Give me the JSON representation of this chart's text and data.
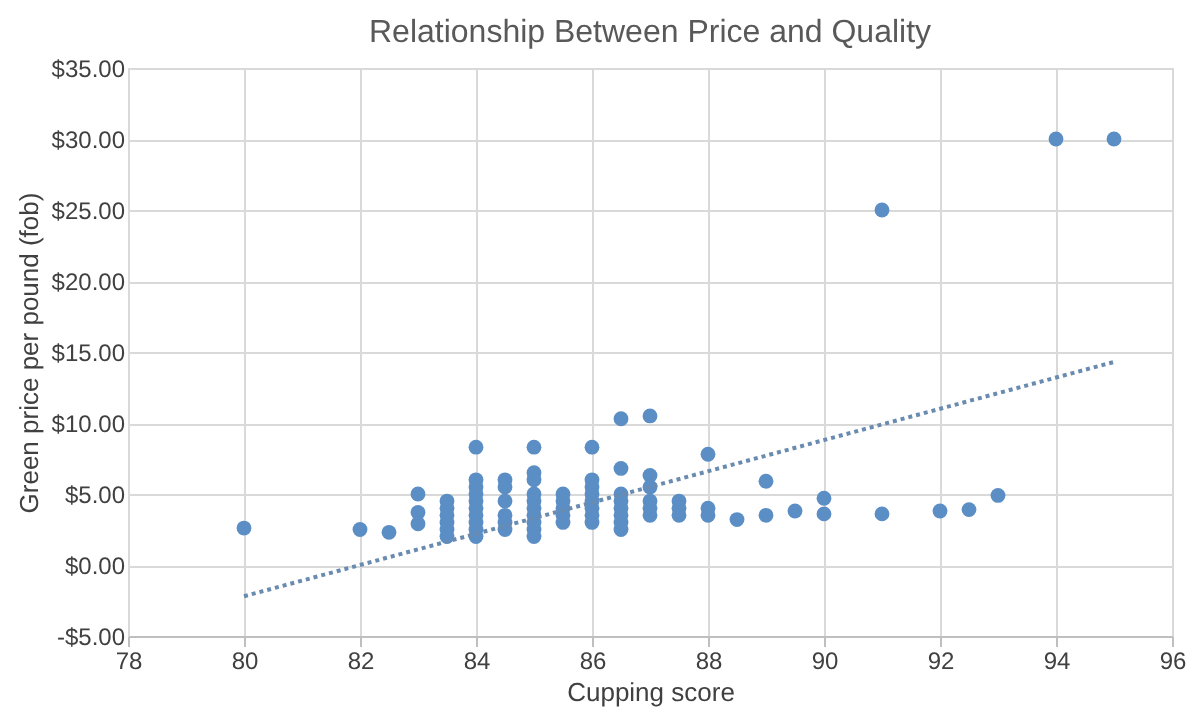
{
  "chart_data": {
    "type": "scatter",
    "title": "Relationship Between Price and Quality",
    "xlabel": "Cupping score",
    "ylabel": "Green price per pound (fob)",
    "xlim": [
      78,
      96
    ],
    "xticks": [
      78,
      80,
      82,
      84,
      86,
      88,
      90,
      92,
      94,
      96
    ],
    "ylim": [
      -5,
      35
    ],
    "yticks": [
      {
        "value": -5,
        "label": "-$5.00"
      },
      {
        "value": 0,
        "label": "$0.00"
      },
      {
        "value": 5,
        "label": "$5.00"
      },
      {
        "value": 10,
        "label": "$10.00"
      },
      {
        "value": 15,
        "label": "$15.00"
      },
      {
        "value": 20,
        "label": "$20.00"
      },
      {
        "value": 25,
        "label": "$25.00"
      },
      {
        "value": 30,
        "label": "$30.00"
      },
      {
        "value": 35,
        "label": "$35.00"
      }
    ],
    "grid": true,
    "legend": false,
    "series": [
      {
        "marker": "circle",
        "color": "#5b8ec4",
        "x": [
          80,
          82,
          82.5,
          83,
          83,
          83,
          83.5,
          83.5,
          83.5,
          83.5,
          83.5,
          83.5,
          84,
          84,
          84,
          84,
          84,
          84,
          84,
          84,
          84,
          84,
          84.5,
          84.5,
          84.5,
          84.5,
          84.5,
          84.5,
          85,
          85,
          85,
          85,
          85,
          85,
          85,
          85,
          85,
          85,
          85.5,
          85.5,
          85.5,
          85.5,
          85.5,
          86,
          86,
          86,
          86,
          86,
          86,
          86,
          86,
          86.5,
          86.5,
          86.5,
          86.5,
          86.5,
          86.5,
          86.5,
          86.5,
          87,
          87,
          87,
          87,
          87,
          87,
          87.5,
          87.5,
          87.5,
          88,
          88,
          88,
          88.5,
          89,
          89,
          89.5,
          90,
          90,
          91,
          91,
          92,
          92.5,
          93,
          94,
          95
        ],
        "values": [
          2.6,
          2.5,
          2.3,
          5,
          3.7,
          2.9,
          4.5,
          4,
          3.5,
          3,
          2.5,
          2,
          8.3,
          6,
          5.5,
          5,
          4.5,
          4,
          3.5,
          3,
          2.5,
          2,
          6,
          5.5,
          4.5,
          3.5,
          3,
          2.5,
          8.3,
          6.5,
          6,
          5,
          4.5,
          4,
          3.5,
          3,
          2.5,
          2,
          5,
          4.5,
          4,
          3.5,
          3,
          8.3,
          6,
          5.5,
          5,
          4.5,
          4,
          3.5,
          3,
          10.3,
          6.8,
          5,
          4.5,
          4,
          3.5,
          3,
          2.5,
          10.5,
          6.3,
          5.5,
          4.5,
          4,
          3.5,
          4.5,
          4,
          3.5,
          7.8,
          4,
          3.5,
          3.2,
          5.9,
          3.5,
          3.8,
          4.7,
          3.6,
          3.6,
          25,
          3.8,
          3.9,
          4.9,
          30,
          30
        ]
      },
      {
        "type": "line",
        "color": "#6a8bb0",
        "line_style": "dotted",
        "x": [
          80,
          95
        ],
        "values": [
          -2.2,
          14.3
        ]
      }
    ]
  }
}
